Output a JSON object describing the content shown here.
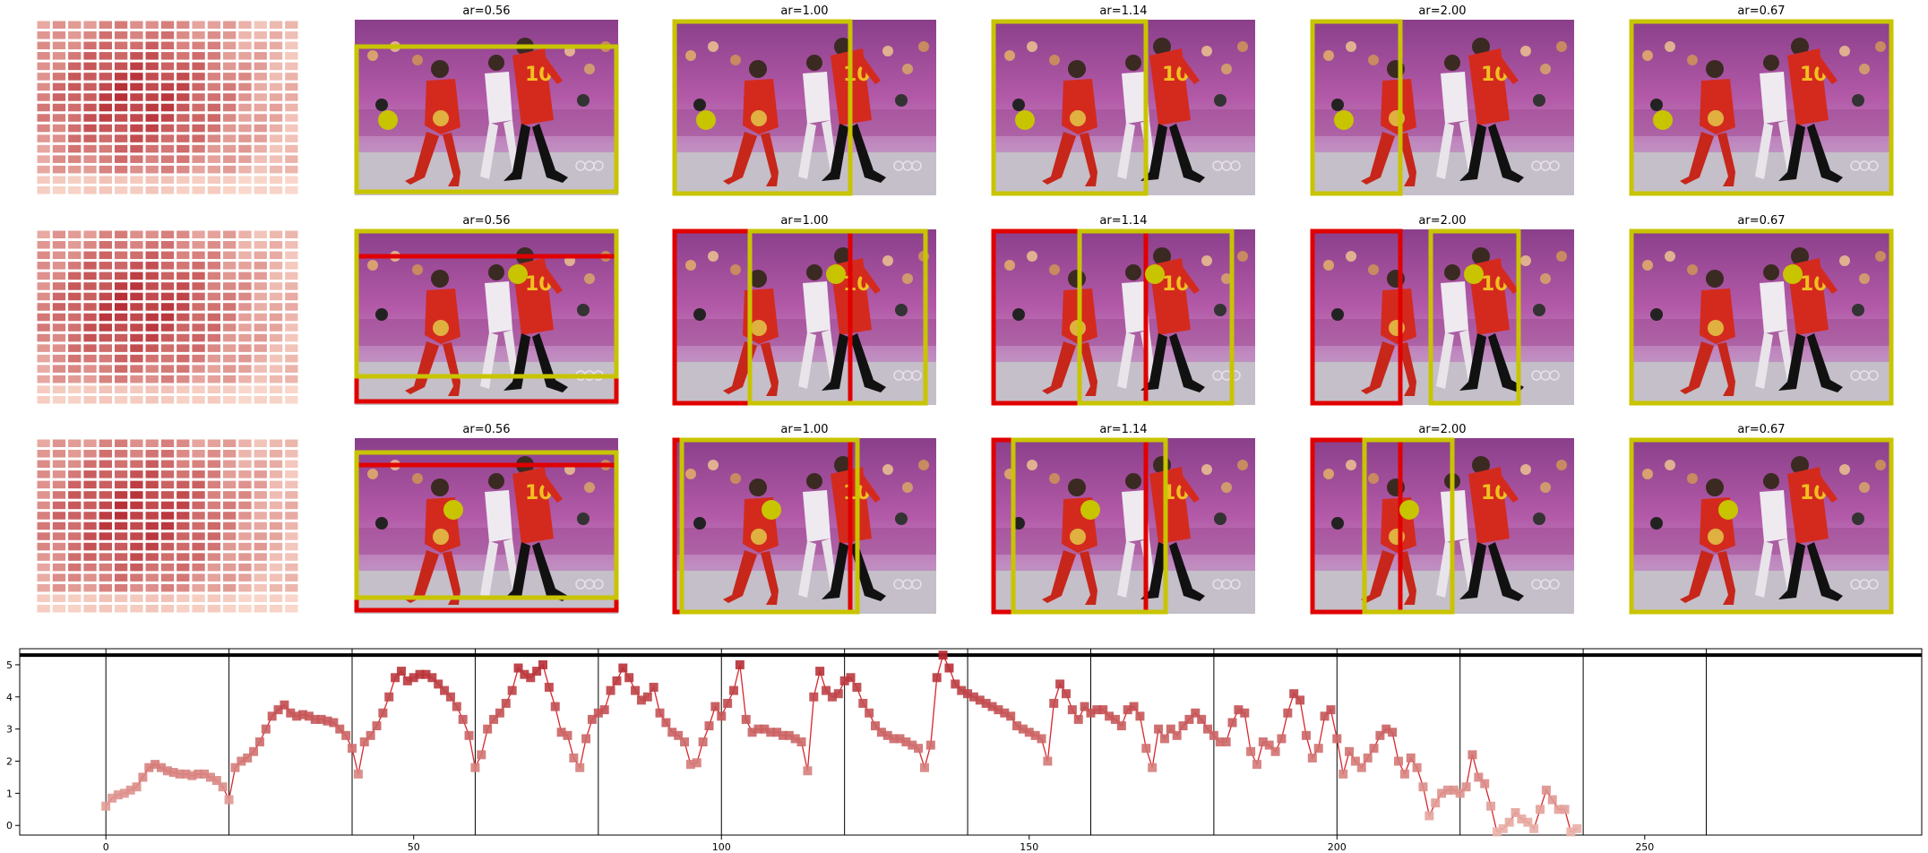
{
  "panels": {
    "rows": 3,
    "cols": 6,
    "titles": [
      [
        "",
        "ar=0.56",
        "ar=1.00",
        "ar=1.14",
        "ar=2.00",
        "ar=0.67"
      ],
      [
        "",
        "ar=0.56",
        "ar=1.00",
        "ar=1.14",
        "ar=2.00",
        "ar=0.67"
      ],
      [
        "",
        "ar=0.56",
        "ar=1.00",
        "ar=1.14",
        "ar=2.00",
        "ar=0.67"
      ]
    ],
    "colors": {
      "yellow_box": "#c8c400",
      "red_box": "#e00000",
      "heat_light": "#fde0d2",
      "heat_dark": "#b3262e"
    }
  },
  "chart_data": {
    "type": "line",
    "title": "",
    "xlabel": "",
    "ylabel": "",
    "xlim": [
      -14,
      295
    ],
    "ylim": [
      -0.3,
      5.5
    ],
    "xticks": [
      0,
      50,
      100,
      150,
      200,
      250
    ],
    "yticks": [
      0,
      1,
      2,
      3,
      4,
      5
    ],
    "vlines": [
      0,
      20,
      40,
      60,
      80,
      100,
      120,
      140,
      160,
      180,
      200,
      220,
      240,
      260
    ],
    "hline": 5.3,
    "color": "#d8262e",
    "series": [
      {
        "values": [
          0.6,
          0.85,
          0.95,
          1.0,
          1.1,
          1.2,
          1.5,
          1.8,
          1.9,
          1.8,
          1.7,
          1.65,
          1.6,
          1.6,
          1.55,
          1.6,
          1.6,
          1.5,
          1.4,
          1.2,
          0.8,
          1.8,
          2.0,
          2.1,
          2.3,
          2.6,
          3.0,
          3.4,
          3.6,
          3.75,
          3.5,
          3.4,
          3.45,
          3.4,
          3.3,
          3.3,
          3.25,
          3.2,
          3.0,
          2.8,
          2.4,
          1.6,
          2.6,
          2.8,
          3.1,
          3.5,
          4.0,
          4.6,
          4.8,
          4.5,
          4.6,
          4.7,
          4.7,
          4.6,
          4.4,
          4.2,
          4.0,
          3.7,
          3.3,
          2.8,
          1.8,
          2.2,
          3.0,
          3.3,
          3.5,
          3.8,
          4.2,
          4.9,
          4.7,
          4.6,
          4.8,
          5.0,
          4.3,
          3.7,
          2.9,
          2.8,
          2.1,
          1.8,
          2.7,
          3.3,
          3.5,
          3.6,
          4.2,
          4.5,
          4.9,
          4.6,
          4.2,
          3.9,
          4.0,
          4.3,
          3.5,
          3.2,
          2.9,
          2.8,
          2.6,
          1.9,
          1.95,
          2.6,
          3.1,
          3.7,
          3.4,
          3.8,
          4.2,
          5.0,
          3.3,
          2.9,
          3.0,
          3.0,
          2.9,
          2.9,
          2.8,
          2.8,
          2.7,
          2.6,
          1.7,
          4.0,
          4.8,
          4.2,
          4.0,
          4.1,
          4.5,
          4.6,
          4.3,
          3.8,
          3.5,
          3.1,
          2.9,
          2.8,
          2.7,
          2.7,
          2.6,
          2.5,
          2.4,
          1.8,
          2.5,
          4.6,
          5.3,
          4.9,
          4.4,
          4.2,
          4.1,
          4.0,
          3.9,
          3.8,
          3.7,
          3.6,
          3.5,
          3.4,
          3.1,
          3.0,
          2.9,
          2.8,
          2.7,
          2.0,
          3.8,
          4.4,
          4.1,
          3.6,
          3.3,
          3.7,
          3.5,
          3.6,
          3.6,
          3.4,
          3.3,
          3.1,
          3.6,
          3.7,
          3.4,
          2.4,
          1.8,
          3.0,
          2.7,
          3.0,
          2.8,
          3.1,
          3.3,
          3.5,
          3.3,
          3.0,
          2.8,
          2.6,
          2.6,
          3.2,
          3.6,
          3.5,
          2.3,
          1.9,
          2.6,
          2.5,
          2.3,
          2.7,
          3.5,
          4.1,
          3.9,
          2.8,
          2.1,
          2.4,
          3.4,
          3.6,
          2.7,
          1.6,
          2.3,
          2.0,
          1.8,
          2.1,
          2.4,
          2.8,
          3.0,
          2.9,
          2.0,
          1.6,
          2.1,
          1.8,
          1.2,
          0.3,
          0.7,
          1.0,
          1.1,
          1.1,
          1.0,
          1.2,
          2.2,
          1.5,
          1.3,
          0.6,
          -0.2,
          -0.1,
          0.1,
          0.4,
          0.2,
          0.1,
          -0.1,
          0.5,
          1.1,
          0.8,
          0.5,
          0.5,
          -0.2,
          -0.1
        ]
      }
    ]
  }
}
